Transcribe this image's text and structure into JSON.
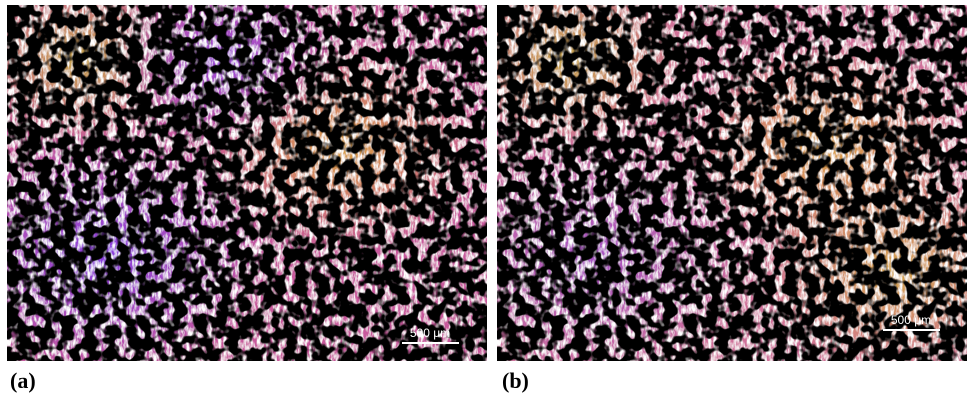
{
  "panels": [
    {
      "label": "(a)",
      "scale_bar": "500 μm"
    },
    {
      "label": "(b)",
      "scale_bar": "500 μm"
    }
  ]
}
